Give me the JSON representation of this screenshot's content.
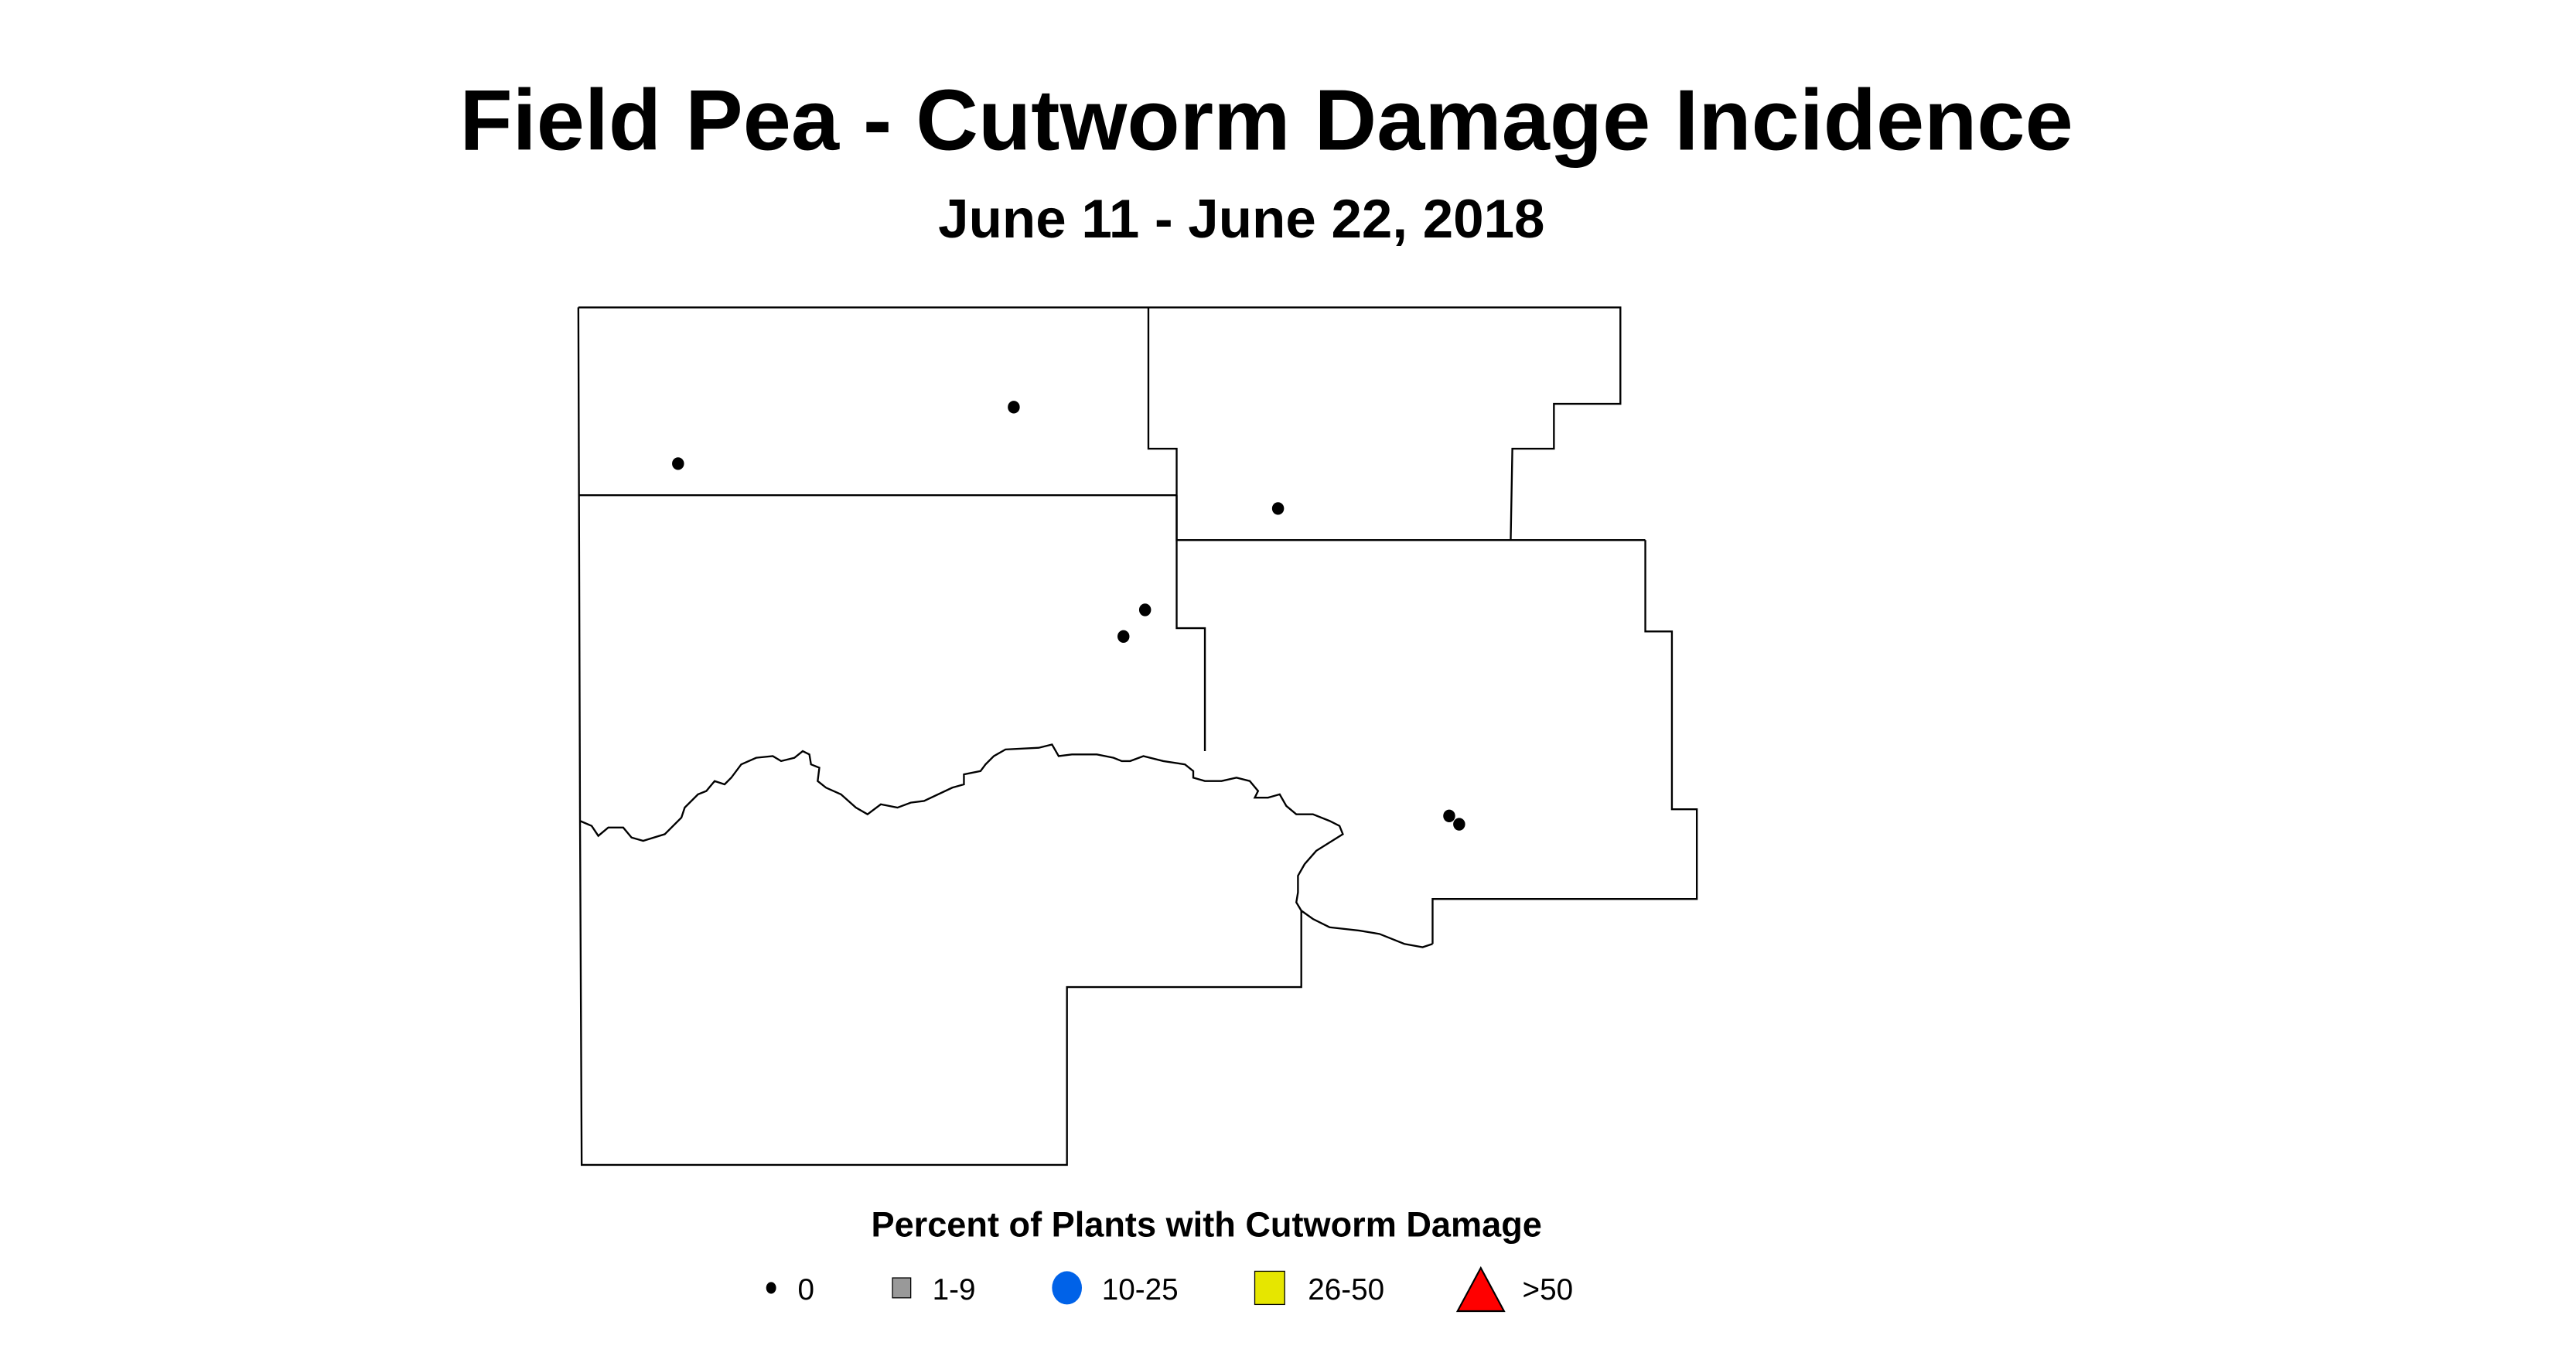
{
  "title": "Field Pea - Cutworm Damage Incidence",
  "subtitle": "June 11 - June 22, 2018",
  "legend": {
    "title": "Percent of Plants with Cutworm Damage",
    "items": [
      {
        "label": "0",
        "symbol": "small-dot",
        "color": "#000000"
      },
      {
        "label": "1-9",
        "symbol": "square",
        "color": "#999999"
      },
      {
        "label": "10-25",
        "symbol": "circle",
        "color": "#0062e8"
      },
      {
        "label": "26-50",
        "symbol": "square",
        "color": "#e6e600"
      },
      {
        "label": ">50",
        "symbol": "triangle",
        "color": "#ff0000"
      }
    ]
  },
  "sites": [
    {
      "category": "0"
    },
    {
      "category": "0"
    },
    {
      "category": "0"
    },
    {
      "category": "0"
    },
    {
      "category": "0"
    },
    {
      "category": "0"
    },
    {
      "category": "0"
    }
  ]
}
